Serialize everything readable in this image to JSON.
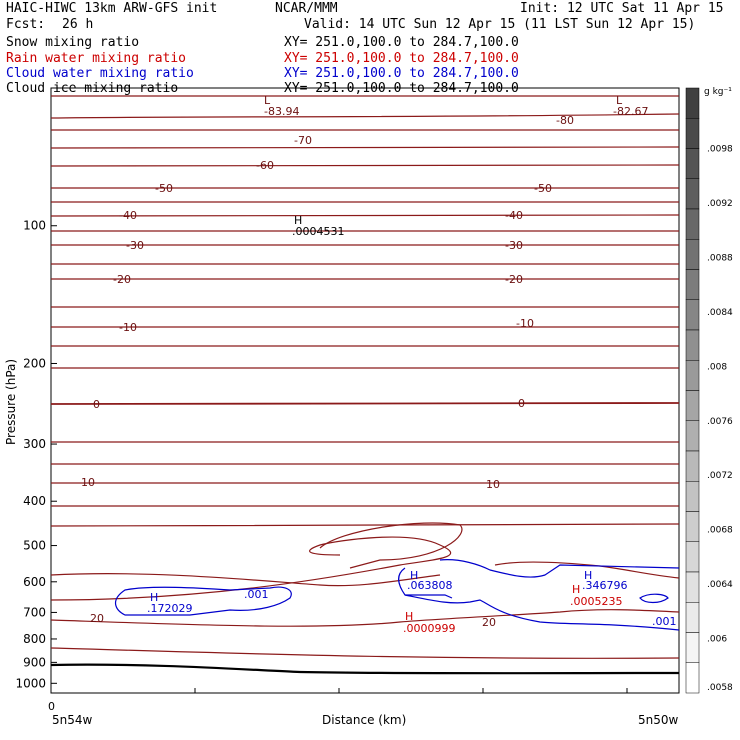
{
  "header": {
    "model": "HAIC-HIWC 13km ARW-GFS init",
    "org": "NCAR/MMM",
    "init": "Init: 12 UTC Sat 11 Apr 15",
    "fcst_label": "Fcst:",
    "fcst_value": "26 h",
    "valid": "Valid: 14 UTC Sun 12 Apr 15 (11 LST Sun 12 Apr 15)",
    "fields": [
      {
        "name": "Snow mixing ratio",
        "xy": "XY= 251.0,100.0 to 284.7,100.0",
        "color": "#000000"
      },
      {
        "name": "Rain water mixing ratio",
        "xy": "XY= 251.0,100.0 to 284.7,100.0",
        "color": "#cc0000"
      },
      {
        "name": "Cloud water mixing ratio",
        "xy": "XY= 251.0,100.0 to 284.7,100.0",
        "color": "#0000cc"
      },
      {
        "name": "Cloud ice mixing ratio",
        "xy": "XY= 251.0,100.0 to 284.7,100.0",
        "color": "#000000"
      }
    ]
  },
  "chart_data": {
    "type": "contour-cross-section",
    "ylabel": "Pressure (hPa)",
    "xlabel": "Distance (km)",
    "y_ticks": [
      100,
      200,
      300,
      400,
      500,
      600,
      700,
      800,
      900,
      1000
    ],
    "ylim": [
      1050,
      50
    ],
    "y_scale": "log",
    "x_left_label": "5n54w",
    "x_right_label": "5n50w",
    "x_zero_label": "0",
    "temperature_contours": [
      {
        "label": "-83.94",
        "marker": "L"
      },
      {
        "label": "-82.67",
        "marker": "L"
      },
      {
        "label": "-80"
      },
      {
        "label": "-70"
      },
      {
        "label": "-60"
      },
      {
        "label": "-50"
      },
      {
        "label": "-40"
      },
      {
        "label": "-30"
      },
      {
        "label": "-20"
      },
      {
        "label": "-10"
      },
      {
        "label": "0"
      },
      {
        "label": "10"
      },
      {
        "label": "20"
      }
    ],
    "annotations": [
      {
        "marker": "H",
        "value": ".0004531",
        "color": "#000000"
      },
      {
        "marker": "H",
        "value": ".172029",
        "color": "#0000cc"
      },
      {
        "marker": "H",
        "value": ".063808",
        "color": "#0000cc"
      },
      {
        "marker": "H",
        "value": ".346796",
        "color": "#0000cc"
      },
      {
        "marker": "H",
        "value": ".0005235",
        "color": "#cc0000"
      },
      {
        "marker": "H",
        "value": ".0000999",
        "color": "#cc0000"
      },
      {
        "value": ".001",
        "color": "#0000cc"
      },
      {
        "value": ".001",
        "color": "#0000cc"
      }
    ],
    "colorbar": {
      "unit": "g kg⁻¹",
      "labels": [
        ".0098",
        ".0092",
        ".0088",
        ".0084",
        ".008",
        ".0076",
        ".0072",
        ".0068",
        ".0064",
        ".006",
        ".0058"
      ]
    },
    "grid": false,
    "colors": {
      "temperature": "#8b1a1a",
      "cloud_water": "#0000cc",
      "rain": "#cc0000",
      "terrain": "#000000"
    }
  }
}
